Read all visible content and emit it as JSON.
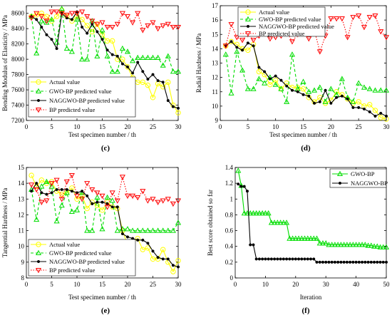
{
  "panels": [
    {
      "label": "(c)",
      "chart_data": {
        "type": "line",
        "xlabel": "Test specimen number / th",
        "ylabel": "Bending Modulus of Elasticity / MPa",
        "xlim": [
          0,
          30
        ],
        "ylim": [
          7200,
          8700
        ],
        "xticks": [
          0,
          5,
          10,
          15,
          20,
          25,
          30
        ],
        "yticks": [
          7200,
          7400,
          7600,
          7800,
          8000,
          8200,
          8400,
          8600
        ],
        "grid": false,
        "legend_position": "bottom-left",
        "x": [
          1,
          2,
          3,
          4,
          5,
          6,
          7,
          8,
          9,
          10,
          11,
          12,
          13,
          14,
          15,
          16,
          17,
          18,
          19,
          20,
          21,
          22,
          23,
          24,
          25,
          26,
          27,
          28,
          29,
          30
        ],
        "series": [
          {
            "name": "Actual value",
            "color": "#ffff00",
            "marker": "circle",
            "dash": "solid",
            "values": [
              8560,
              8580,
              8600,
              8560,
              8500,
              8560,
              8640,
              8560,
              8500,
              8560,
              8520,
              8440,
              8360,
              8460,
              8320,
              8240,
              8240,
              8000,
              8000,
              7900,
              7760,
              7700,
              7700,
              7660,
              7500,
              7680,
              7640,
              7700,
              7400,
              7300
            ]
          },
          {
            "name": "GWO-BP predicted value",
            "color": "#00dd00",
            "marker": "triangle-up",
            "dash": "dashed",
            "values": [
              8560,
              8080,
              8500,
              8480,
              8520,
              8220,
              8660,
              8140,
              8100,
              8520,
              8000,
              8000,
              8500,
              8040,
              8380,
              8040,
              7840,
              7840,
              8140,
              8100,
              7980,
              8020,
              8020,
              8020,
              8020,
              8020,
              7920,
              8040,
              7840,
              7840
            ]
          },
          {
            "name": "NAGGWO-BP predicted value",
            "color": "#000000",
            "marker": "dot",
            "dash": "solid",
            "values": [
              8560,
              8520,
              8420,
              8320,
              8260,
              8140,
              8600,
              8540,
              8520,
              8620,
              8420,
              8340,
              8460,
              8360,
              8260,
              8120,
              8060,
              8040,
              7940,
              7900,
              7820,
              7960,
              7840,
              7740,
              7800,
              7720,
              7700,
              7460,
              7380,
              7360
            ]
          },
          {
            "name": "BP predicted value",
            "color": "#ff0000",
            "marker": "triangle-down",
            "dash": "dotted",
            "values": [
              8540,
              8600,
              8560,
              8500,
              8620,
              8620,
              8600,
              8580,
              8600,
              8600,
              8620,
              8560,
              8500,
              8460,
              8480,
              8420,
              8420,
              8460,
              8600,
              8560,
              8480,
              8600,
              8380,
              8440,
              8480,
              8400,
              8440,
              8460,
              8420,
              8420
            ]
          }
        ]
      }
    },
    {
      "label": "(d)",
      "chart_data": {
        "type": "line",
        "xlabel": "Test specimen number / th",
        "ylabel": "Radial Hardness / MPa",
        "xlim": [
          0,
          30
        ],
        "ylim": [
          9,
          17
        ],
        "xticks": [
          0,
          5,
          10,
          15,
          20,
          25,
          30
        ],
        "yticks": [
          9,
          10,
          11,
          12,
          13,
          14,
          15,
          16,
          17
        ],
        "grid": false,
        "legend_position": "top-left",
        "x": [
          1,
          2,
          3,
          4,
          5,
          6,
          7,
          8,
          9,
          10,
          11,
          12,
          13,
          14,
          15,
          16,
          17,
          18,
          19,
          20,
          21,
          22,
          23,
          24,
          25,
          26,
          27,
          28,
          29,
          30
        ],
        "series": [
          {
            "name": "Actual value",
            "color": "#ffff00",
            "marker": "circle",
            "dash": "solid",
            "values": [
              14.2,
              14.5,
              14.3,
              14.0,
              13.9,
              14.3,
              12.4,
              12.2,
              11.5,
              11.8,
              11.2,
              11.6,
              11.3,
              11.3,
              11.2,
              10.6,
              10.3,
              10.6,
              10.2,
              10.4,
              11.0,
              10.8,
              10.5,
              10.2,
              10.3,
              10.0,
              10.1,
              9.7,
              9.2,
              9.1
            ]
          },
          {
            "name": "GWO-BP predicted value",
            "color": "#00dd00",
            "marker": "triangle-up",
            "dash": "dashed",
            "values": [
              13.6,
              10.9,
              13.8,
              12.5,
              11.2,
              11.2,
              11.9,
              11.6,
              12.0,
              11.5,
              11.2,
              10.3,
              13.6,
              11.2,
              11.7,
              11.0,
              11.1,
              11.3,
              10.3,
              11.2,
              10.8,
              11.9,
              10.6,
              10.3,
              11.6,
              11.3,
              11.2,
              11.1,
              11.1,
              11.1
            ]
          },
          {
            "name": "NAGGWO-BP predicted value",
            "color": "#000000",
            "marker": "dot",
            "dash": "solid",
            "values": [
              14.2,
              14.5,
              14.1,
              13.9,
              14.4,
              14.2,
              12.7,
              12.4,
              11.9,
              12.1,
              11.8,
              11.4,
              11.1,
              11.0,
              10.8,
              10.7,
              10.2,
              10.3,
              11.1,
              10.2,
              10.6,
              10.7,
              10.5,
              9.9,
              9.9,
              9.8,
              9.6,
              9.3,
              9.5,
              9.3
            ]
          },
          {
            "name": "BP predicted value",
            "color": "#ff0000",
            "marker": "triangle-down",
            "dash": "dotted",
            "values": [
              14.2,
              15.7,
              14.8,
              14.6,
              15.0,
              14.6,
              14.9,
              15.4,
              14.7,
              14.8,
              14.9,
              15.2,
              14.5,
              15.0,
              15.2,
              14.7,
              15.3,
              13.8,
              14.9,
              16.1,
              16.1,
              16.1,
              14.8,
              16.2,
              16.3,
              15.5,
              16.2,
              16.3,
              15.2,
              14.8
            ]
          }
        ]
      }
    },
    {
      "label": "(e)",
      "chart_data": {
        "type": "line",
        "xlabel": "Test specimen number / th",
        "ylabel": "Tangential Hardness / MPa",
        "xlim": [
          0,
          30
        ],
        "ylim": [
          8,
          15
        ],
        "xticks": [
          0,
          5,
          10,
          15,
          20,
          25,
          30
        ],
        "yticks": [
          8,
          9,
          10,
          11,
          12,
          13,
          14,
          15
        ],
        "grid": false,
        "legend_position": "bottom-left",
        "x": [
          1,
          2,
          3,
          4,
          5,
          6,
          7,
          8,
          9,
          10,
          11,
          12,
          13,
          14,
          15,
          16,
          17,
          18,
          19,
          20,
          21,
          22,
          23,
          24,
          25,
          26,
          27,
          28,
          29,
          30
        ],
        "series": [
          {
            "name": "Actual value",
            "color": "#ffff00",
            "marker": "circle",
            "dash": "solid",
            "values": [
              14.5,
              13.8,
              14.2,
              14.0,
              14.1,
              13.5,
              13.3,
              13.4,
              13.7,
              13.0,
              13.2,
              12.4,
              12.8,
              12.6,
              12.3,
              12.8,
              12.5,
              12.4,
              11.0,
              10.1,
              10.3,
              10.5,
              9.8,
              9.9,
              9.2,
              9.2,
              9.8,
              9.0,
              8.4,
              9.1
            ]
          },
          {
            "name": "GWO-BP predicted value",
            "color": "#00dd00",
            "marker": "triangle-up",
            "dash": "dashed",
            "values": [
              13.6,
              11.7,
              13.8,
              14.1,
              13.8,
              11.6,
              12.6,
              13.4,
              12.2,
              12.3,
              13.4,
              11.0,
              11.0,
              13.1,
              11.1,
              13.1,
              12.9,
              11.0,
              11.1,
              11.1,
              11.0,
              11.0,
              11.0,
              11.0,
              11.0,
              11.0,
              11.0,
              11.0,
              11.0,
              11.5
            ]
          },
          {
            "name": "NAGGWO-BP predicted value",
            "color": "#000000",
            "marker": "dot",
            "dash": "solid",
            "values": [
              13.5,
              14.0,
              13.4,
              13.3,
              13.4,
              13.6,
              13.6,
              13.6,
              13.5,
              13.4,
              13.5,
              13.2,
              12.7,
              12.8,
              12.8,
              12.7,
              12.5,
              12.5,
              10.8,
              10.6,
              10.5,
              10.4,
              10.4,
              10.2,
              9.7,
              9.3,
              9.2,
              9.2,
              8.8,
              8.7
            ]
          },
          {
            "name": "BP predicted value",
            "color": "#ff0000",
            "marker": "triangle-down",
            "dash": "dotted",
            "values": [
              13.9,
              13.6,
              12.8,
              12.9,
              14.0,
              14.2,
              13.0,
              14.1,
              14.5,
              13.2,
              13.0,
              14.0,
              13.6,
              13.4,
              13.2,
              12.5,
              13.4,
              12.9,
              14.4,
              13.2,
              13.2,
              13.1,
              13.5,
              12.9,
              13.0,
              12.8,
              12.9,
              13.0,
              12.7,
              12.9
            ]
          }
        ]
      }
    },
    {
      "label": "(f)",
      "chart_data": {
        "type": "line",
        "xlabel": "Iteration",
        "ylabel": "Best score obtained so far",
        "xlim": [
          0,
          50
        ],
        "ylim": [
          0,
          1.4
        ],
        "xticks": [
          0,
          10,
          20,
          30,
          40,
          50
        ],
        "yticks": [
          0,
          0.2,
          0.4,
          0.6,
          0.8,
          1,
          1.2,
          1.4
        ],
        "grid": false,
        "legend_position": "top-right",
        "x": [
          1,
          2,
          3,
          4,
          5,
          6,
          7,
          8,
          9,
          10,
          11,
          12,
          13,
          14,
          15,
          16,
          17,
          18,
          19,
          20,
          21,
          22,
          23,
          24,
          25,
          26,
          27,
          28,
          29,
          30,
          31,
          32,
          33,
          34,
          35,
          36,
          37,
          38,
          39,
          40,
          41,
          42,
          43,
          44,
          45,
          46,
          47,
          48,
          49,
          50
        ],
        "series": [
          {
            "name": "GWO-BP",
            "color": "#00dd00",
            "marker": "triangle-up",
            "dash": "solid",
            "values": [
              1.36,
              1.17,
              0.82,
              0.82,
              0.82,
              0.82,
              0.82,
              0.82,
              0.82,
              0.82,
              0.82,
              0.7,
              0.7,
              0.7,
              0.7,
              0.7,
              0.7,
              0.5,
              0.5,
              0.5,
              0.5,
              0.5,
              0.5,
              0.5,
              0.5,
              0.5,
              0.5,
              0.44,
              0.44,
              0.44,
              0.42,
              0.42,
              0.42,
              0.42,
              0.42,
              0.42,
              0.42,
              0.42,
              0.42,
              0.42,
              0.42,
              0.42,
              0.42,
              0.41,
              0.41,
              0.4,
              0.4,
              0.39,
              0.39,
              0.39
            ]
          },
          {
            "name": "NAGGWO-BP",
            "color": "#000000",
            "marker": "dot",
            "dash": "solid",
            "values": [
              1.19,
              1.16,
              1.16,
              1.1,
              0.42,
              0.42,
              0.24,
              0.24,
              0.24,
              0.24,
              0.24,
              0.24,
              0.24,
              0.24,
              0.24,
              0.24,
              0.24,
              0.24,
              0.24,
              0.24,
              0.24,
              0.24,
              0.24,
              0.24,
              0.24,
              0.24,
              0.2,
              0.2,
              0.2,
              0.2,
              0.2,
              0.2,
              0.2,
              0.2,
              0.2,
              0.2,
              0.2,
              0.2,
              0.2,
              0.2,
              0.2,
              0.2,
              0.2,
              0.2,
              0.2,
              0.2,
              0.2,
              0.2,
              0.2,
              0.2
            ]
          }
        ]
      }
    }
  ]
}
